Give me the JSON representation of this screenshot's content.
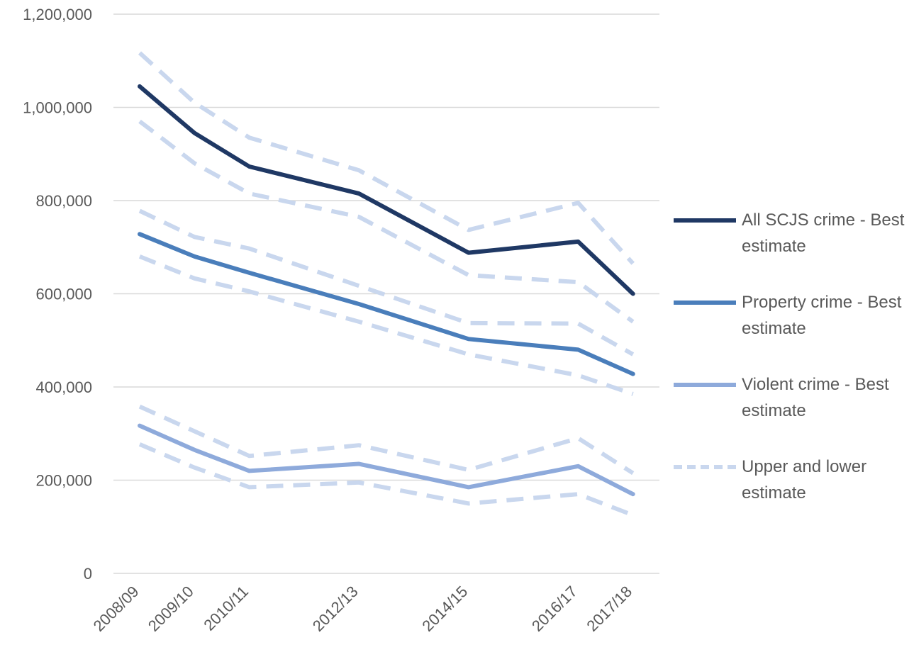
{
  "chart_data": {
    "type": "line",
    "categories": [
      "2008/09",
      "2009/10",
      "2010/11",
      "2012/13",
      "2014/15",
      "2016/17",
      "2017/18"
    ],
    "x_positions": [
      0,
      1,
      2,
      4,
      6,
      8,
      9
    ],
    "ylim": [
      0,
      1200000
    ],
    "yticks": [
      0,
      200000,
      400000,
      600000,
      800000,
      1000000,
      1200000
    ],
    "ytick_labels": [
      "0",
      "200,000",
      "400,000",
      "600,000",
      "800,000",
      "1,000,000",
      "1,200,000"
    ],
    "grid": true,
    "legend_position": "right",
    "series": [
      {
        "name": "All SCJS crime - Best estimate",
        "color": "#1f3864",
        "style": "solid",
        "values": [
          1045000,
          945000,
          873000,
          815000,
          688000,
          712000,
          600000
        ]
      },
      {
        "name": "Property crime - Best estimate",
        "color": "#4a7ebb",
        "style": "solid",
        "values": [
          728000,
          680000,
          645000,
          578000,
          503000,
          480000,
          428000
        ]
      },
      {
        "name": "Violent crime - Best estimate",
        "color": "#8eaadb",
        "style": "solid",
        "values": [
          317000,
          265000,
          220000,
          235000,
          185000,
          230000,
          170000
        ]
      },
      {
        "name": "Upper and lower estimate",
        "color": "#c9d7ee",
        "style": "dashed",
        "bands": [
          {
            "upper": [
              1117000,
              1010000,
              935000,
              865000,
              737000,
              795000,
              665000
            ],
            "lower": [
              970000,
              880000,
              815000,
              765000,
              640000,
              625000,
              540000
            ]
          },
          {
            "upper": [
              778000,
              722000,
              697000,
              617000,
              537000,
              536000,
              470000
            ],
            "lower": [
              680000,
              633000,
              605000,
              540000,
              470000,
              425000,
              385000
            ]
          },
          {
            "upper": [
              358000,
              305000,
              252000,
              275000,
              222000,
              290000,
              215000
            ],
            "lower": [
              277000,
              227000,
              185000,
              195000,
              150000,
              170000,
              125000
            ]
          }
        ]
      }
    ]
  }
}
